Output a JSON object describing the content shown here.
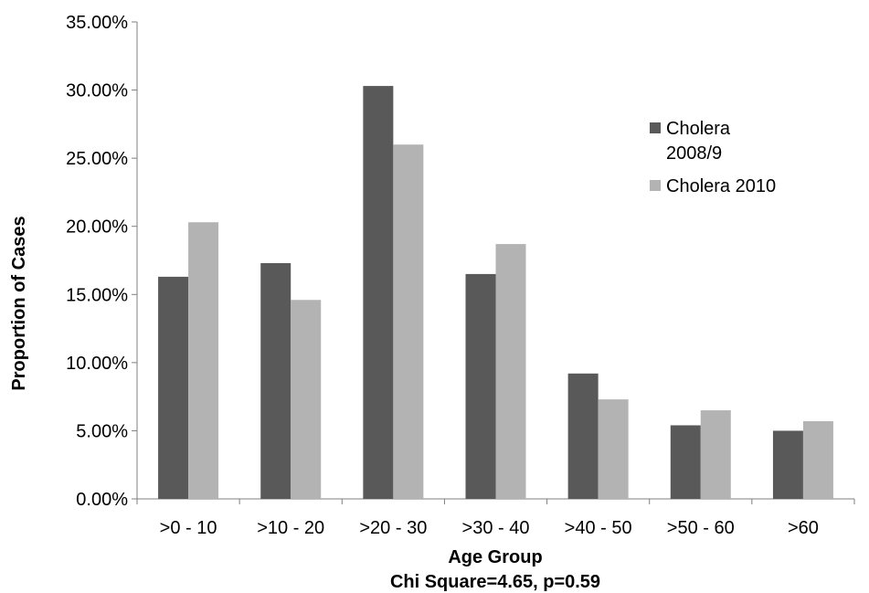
{
  "chart_data": {
    "type": "bar",
    "categories": [
      ">0 - 10",
      ">10 - 20",
      ">20 - 30",
      ">30 - 40",
      ">40 - 50",
      ">50 - 60",
      ">60"
    ],
    "series": [
      {
        "name": "Cholera 2008/9",
        "name_lines": [
          "Cholera",
          "2008/9"
        ],
        "color": "#595959",
        "values": [
          16.3,
          17.3,
          30.3,
          16.5,
          9.2,
          5.4,
          5.0
        ]
      },
      {
        "name": "Cholera 2010",
        "name_lines": [
          "Cholera 2010"
        ],
        "color": "#b3b3b3",
        "values": [
          20.3,
          14.6,
          26.0,
          18.7,
          7.3,
          6.5,
          5.7
        ]
      }
    ],
    "xlabel": "Age Group",
    "ylabel": "Proportion of Cases",
    "subtitle": "Chi Square=4.65,  p=0.59",
    "ylim": [
      0,
      35
    ],
    "yticks": [
      0,
      5,
      10,
      15,
      20,
      25,
      30,
      35
    ],
    "ytick_labels": [
      "0.00%",
      "5.00%",
      "10.00%",
      "15.00%",
      "20.00%",
      "25.00%",
      "30.00%",
      "35.00%"
    ],
    "grid": false,
    "legend_position": "right"
  }
}
